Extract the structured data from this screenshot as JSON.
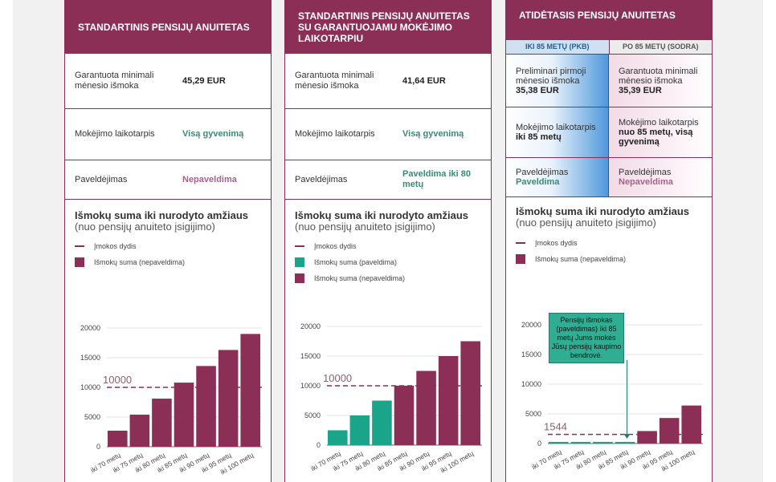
{
  "colors": {
    "accent": "#8b2f56",
    "teal": "#1aa58a",
    "green_text": "#3a8a78",
    "pink_text": "#a5628a"
  },
  "card1": {
    "title": "STANDARTINIS PENSIJŲ ANUITETAS",
    "rows": [
      {
        "label": "Garantuota minimali mėnesio išmoka",
        "value": "45,29 EUR"
      },
      {
        "label": "Mokėjimo laikotarpis",
        "value": "Visą gyvenimą"
      },
      {
        "label": "Paveldėjimas",
        "value": "Nepaveldima"
      }
    ],
    "chart_title": "Išmokų suma iki nurodyto amžiaus",
    "chart_subtitle": "(nuo pensijų anuiteto įsigijimo)",
    "legend": [
      "Įmokos dydis",
      "Išmokų suma (nepaveldima)"
    ]
  },
  "card2": {
    "title": "STANDARTINIS PENSIJŲ ANUITETAS SU GARANTUOJAMU MOKĖJIMO LAIKOTARPIU",
    "rows": [
      {
        "label": "Garantuota minimali mėnesio išmoka",
        "value": "41,64 EUR"
      },
      {
        "label": "Mokėjimo laikotarpis",
        "value": "Visą gyvenimą"
      },
      {
        "label": "Paveldėjimas",
        "value": "Paveldima iki 80 metų"
      }
    ],
    "chart_title": "Išmokų suma iki nurodyto amžiaus",
    "chart_subtitle": "(nuo pensijų anuiteto įsigijimo)",
    "legend": [
      "Įmokos dydis",
      "Išmokų suma (paveldima)",
      "Išmokų suma (nepaveldima)"
    ]
  },
  "card3": {
    "title": "ATIDĖTASIS PENSIJŲ ANUITETAS",
    "sub_left": "IKI 85 METŲ (PKB)",
    "sub_right": "PO 85 METŲ (SODRA)",
    "rows": [
      {
        "left_label": "Preliminari pirmoji mėnesio išmoka",
        "left_value": "35,38 EUR",
        "right_label": "Garantuota minimali mėnesio išmoka",
        "right_value": "35,39 EUR"
      },
      {
        "left_label": "Mokėjimo laikotarpis",
        "left_value": "iki 85 metų",
        "right_label": "Mokėjimo laikotarpis",
        "right_value": "nuo 85 metų, visą gyvenimą"
      },
      {
        "left_label": "Paveldėjimas",
        "left_value": "Paveldima",
        "right_label": "Paveldėjimas",
        "right_value": "Nepaveldima"
      }
    ],
    "chart_title": "Išmokų suma iki nurodyto amžiaus",
    "chart_subtitle": "(nuo pensijų anuiteto įsigijimo)",
    "legend": [
      "Įmokos dydis",
      "Išmokų suma (nepaveldima)"
    ],
    "tooltip": "Pensijų išmokas (paveldimas) iki 85 metų Jums mokės Jūsų pensijų kaupimo bendrovė."
  },
  "chart_data": [
    {
      "type": "bar",
      "categories": [
        "iki 70 metų",
        "iki 75 metų",
        "iki 80 metų",
        "iki 85 metų",
        "iki 90 metų",
        "iki 95 metų",
        "iki 100 metų"
      ],
      "series": [
        {
          "name": "Išmokų suma (nepaveldima)",
          "values": [
            2700,
            5400,
            8100,
            10800,
            13600,
            16300,
            19000
          ]
        }
      ],
      "reference_line": {
        "name": "Įmokos dydis",
        "value": 10000,
        "label": "10000"
      },
      "yticks": [
        0,
        5000,
        10000,
        15000,
        20000
      ],
      "ylim": [
        0,
        20000
      ]
    },
    {
      "type": "bar",
      "categories": [
        "iki 70 metų",
        "iki 75 metų",
        "iki 80 metų",
        "iki 85 metų",
        "iki 90 metų",
        "iki 95 metų",
        "iki 100 metų"
      ],
      "series": [
        {
          "name": "Išmokų suma (paveldima)",
          "values": [
            2500,
            5000,
            7500,
            null,
            null,
            null,
            null
          ]
        },
        {
          "name": "Išmokų suma (nepaveldima)",
          "values": [
            null,
            null,
            null,
            10000,
            12500,
            15000,
            17500
          ]
        }
      ],
      "reference_line": {
        "name": "Įmokos dydis",
        "value": 10000,
        "label": "10000"
      },
      "yticks": [
        0,
        5000,
        10000,
        15000,
        20000
      ],
      "ylim": [
        0,
        20000
      ]
    },
    {
      "type": "bar",
      "categories": [
        "iki 70 metų",
        "iki 75 metų",
        "iki 80 metų",
        "iki 85 metų",
        "iki 90 metų",
        "iki 95 metų",
        "iki 100 metų"
      ],
      "series": [
        {
          "name": "Išmokų suma (nepaveldima)",
          "values": [
            0,
            0,
            0,
            0,
            2100,
            4300,
            6400
          ]
        }
      ],
      "reference_line": {
        "name": "Įmokos dydis",
        "value": 1544,
        "label": "1544"
      },
      "yticks": [
        0,
        5000,
        10000,
        15000,
        20000
      ],
      "ylim": [
        0,
        20000
      ]
    }
  ]
}
